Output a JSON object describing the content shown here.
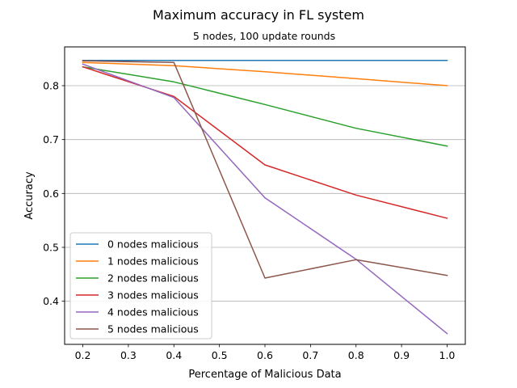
{
  "chart_data": {
    "type": "line",
    "title": "Maximum accuracy in FL system",
    "subtitle": "5 nodes, 100 update rounds",
    "xlabel": "Percentage of Malicious Data",
    "ylabel": "Accuracy",
    "x": [
      0.2,
      0.4,
      0.6,
      0.8,
      1.0
    ],
    "xlim": [
      0.16,
      1.04
    ],
    "ylim": [
      0.32,
      0.872
    ],
    "xticks": [
      "0.2",
      "0.3",
      "0.4",
      "0.5",
      "0.6",
      "0.7",
      "0.8",
      "0.9",
      "1.0"
    ],
    "yticks": [
      "0.4",
      "0.5",
      "0.6",
      "0.7",
      "0.8"
    ],
    "grid": "horizontal",
    "legend_position": "lower-left",
    "series": [
      {
        "name": "0 nodes malicious",
        "color": "#1f77b4",
        "values": [
          0.847,
          0.847,
          0.847,
          0.847,
          0.847
        ]
      },
      {
        "name": "1 nodes malicious",
        "color": "#ff7f0e",
        "values": [
          0.843,
          0.837,
          0.826,
          0.813,
          0.8
        ]
      },
      {
        "name": "2 nodes malicious",
        "color": "#2ca02c",
        "values": [
          0.835,
          0.807,
          0.765,
          0.721,
          0.688
        ]
      },
      {
        "name": "3 nodes malicious",
        "color": "#d62728",
        "values": [
          0.835,
          0.78,
          0.653,
          0.597,
          0.554
        ]
      },
      {
        "name": "4 nodes malicious",
        "color": "#9467bd",
        "values": [
          0.84,
          0.778,
          0.592,
          0.478,
          0.34
        ]
      },
      {
        "name": "5 nodes malicious",
        "color": "#8c564b",
        "values": [
          0.846,
          0.843,
          0.443,
          0.477,
          0.448
        ]
      }
    ]
  }
}
